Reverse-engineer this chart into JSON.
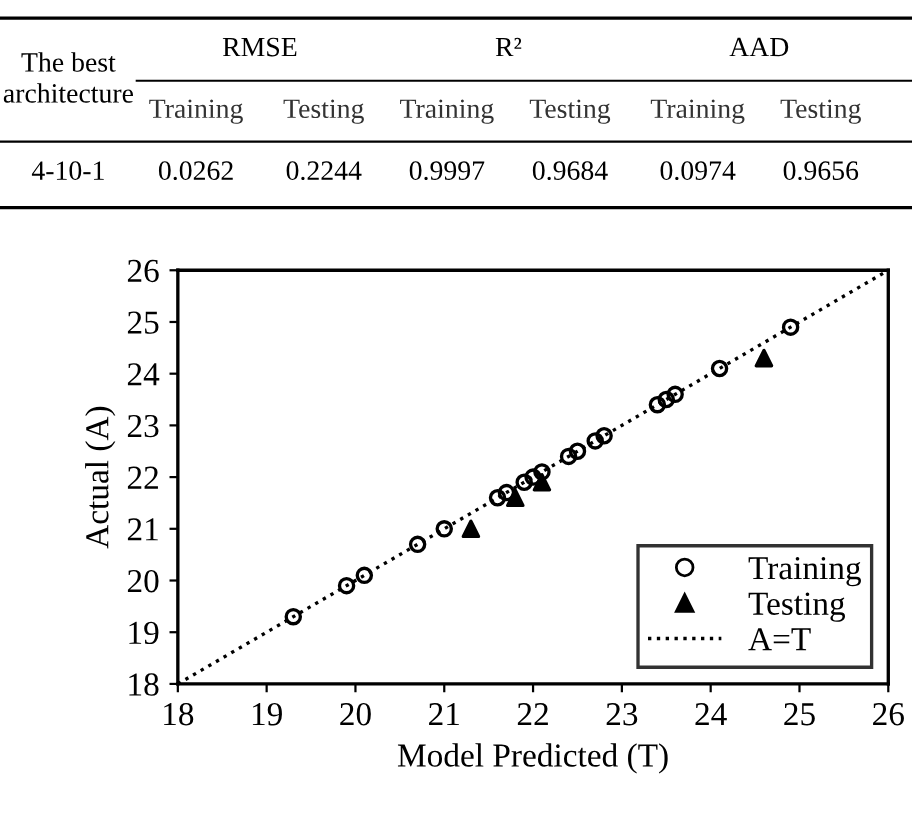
{
  "chart_data": [
    {
      "type": "other",
      "annotations": [
        "The best\narchitecture",
        "RMSE",
        "R²",
        "AAD",
        "Training",
        "Testing",
        "Training",
        "Testing",
        "Training",
        "Testing",
        "4-10-1",
        "0.0262",
        "0.2244",
        "0.9997",
        "0.9684",
        "0.0974",
        "0.9656"
      ]
    },
    {
      "type": "scatter",
      "xlabel": "Model Predicted (T)",
      "ylabel": "Actual (A)",
      "xlim": [
        18,
        26
      ],
      "ylim": [
        18,
        26
      ],
      "xticks": [
        18,
        19,
        20,
        21,
        22,
        23,
        24,
        25,
        26
      ],
      "yticks": [
        18,
        19,
        20,
        21,
        22,
        23,
        24,
        25,
        26
      ],
      "grid": false,
      "legend": "bottom right",
      "series": [
        {
          "name": "Training",
          "type": "scatter",
          "marker": "circle",
          "color": "#000000",
          "x": [
            19.3,
            19.9,
            20.1,
            20.7,
            21.0,
            21.6,
            21.7,
            21.9,
            22.0,
            22.1,
            22.4,
            22.5,
            22.7,
            22.8,
            23.4,
            23.5,
            23.6,
            24.1,
            24.9
          ],
          "values": [
            19.3,
            19.9,
            20.1,
            20.7,
            21.0,
            21.6,
            21.7,
            21.9,
            22.0,
            22.1,
            22.4,
            22.5,
            22.7,
            22.8,
            23.4,
            23.5,
            23.6,
            24.1,
            24.9
          ]
        },
        {
          "name": "Testing",
          "type": "scatter",
          "marker": "triangle",
          "color": "#000000",
          "x": [
            21.3,
            21.8,
            22.1,
            24.6
          ],
          "values": [
            21.0,
            21.6,
            21.9,
            24.3
          ]
        },
        {
          "name": "A=T",
          "type": "line",
          "marker": "none",
          "line_style": "dotted",
          "color": "#000000",
          "x": [
            18,
            26
          ],
          "values": [
            18,
            26
          ]
        }
      ]
    }
  ]
}
